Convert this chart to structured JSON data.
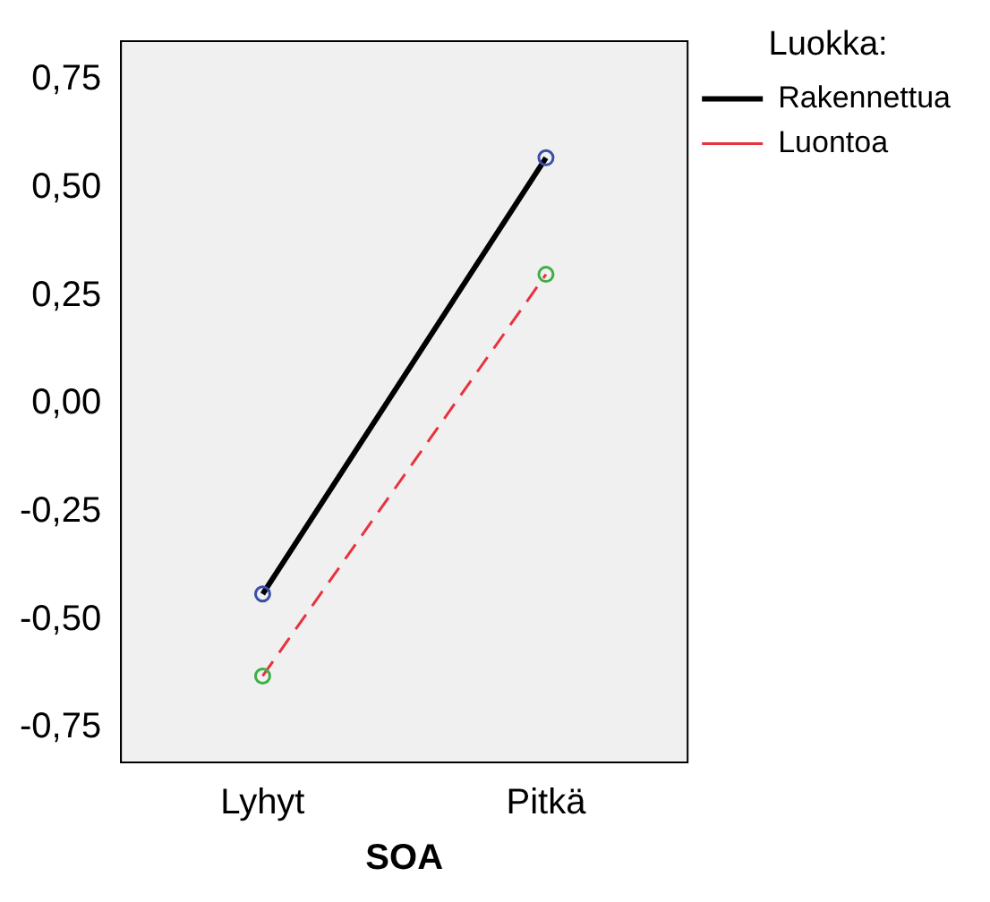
{
  "chart_data": {
    "type": "line",
    "xlabel": "SOA",
    "legend_title": "Luokka:",
    "categories": [
      "Lyhyt",
      "Pitkä"
    ],
    "series": [
      {
        "name": "Rakennettua",
        "color": "#000000",
        "colors": [
          "#3a4fa8",
          "#3a4fa8"
        ],
        "line_style": "solid",
        "values": [
          -0.44,
          0.57
        ]
      },
      {
        "name": "Luontoa",
        "color": "#e8323c",
        "colors": [
          "#3cb043",
          "#3cb043"
        ],
        "line_style": "dashed",
        "values": [
          -0.63,
          0.3
        ]
      }
    ],
    "ylim": [
      -0.83,
      0.84
    ],
    "yticks": [
      {
        "value": -0.75,
        "label": "-0,75"
      },
      {
        "value": -0.5,
        "label": "-0,50"
      },
      {
        "value": -0.25,
        "label": "-0,25"
      },
      {
        "value": 0,
        "label": "0,00"
      },
      {
        "value": 0.25,
        "label": "0,25"
      },
      {
        "value": 0.5,
        "label": "0,50"
      },
      {
        "value": 0.75,
        "label": "0,75"
      }
    ],
    "grid": false,
    "legend": "top right",
    "marker": "circle"
  }
}
